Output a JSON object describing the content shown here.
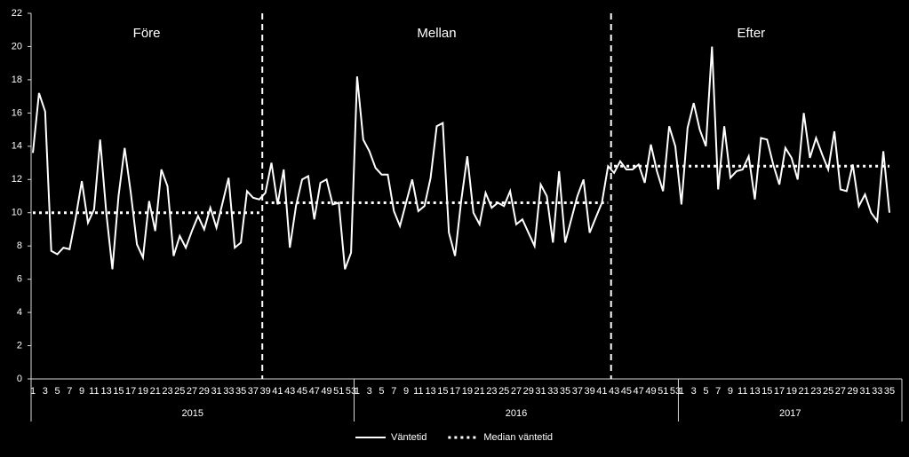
{
  "chart_data": {
    "type": "line",
    "phases": [
      "Före",
      "Mellan",
      "Efter"
    ],
    "categories": [
      "1",
      null,
      "3",
      null,
      "5",
      null,
      "7",
      null,
      "9",
      null,
      "11",
      null,
      "13",
      null,
      "15",
      null,
      "17",
      null,
      "19",
      null,
      "21",
      null,
      "23",
      null,
      "25",
      null,
      "27",
      null,
      "29",
      null,
      "31",
      null,
      "33",
      null,
      "35",
      null,
      "37",
      null,
      "39",
      null,
      "41",
      null,
      "43",
      null,
      "45",
      null,
      "47",
      null,
      "49",
      null,
      "51",
      null,
      "53",
      "1",
      null,
      "3",
      null,
      "5",
      null,
      "7",
      null,
      "9",
      null,
      "11",
      null,
      "13",
      null,
      "15",
      null,
      "17",
      null,
      "19",
      null,
      "21",
      null,
      "23",
      null,
      "25",
      null,
      "27",
      null,
      "29",
      null,
      "31",
      null,
      "33",
      null,
      "35",
      null,
      "37",
      null,
      "39",
      null,
      "41",
      null,
      "43",
      null,
      "45",
      null,
      "47",
      null,
      "49",
      null,
      "51",
      null,
      "53",
      "1",
      null,
      "3",
      null,
      "5",
      null,
      "7",
      null,
      "9",
      null,
      "11",
      null,
      "13",
      null,
      "15",
      null,
      "17",
      null,
      "19",
      null,
      "21",
      null,
      "23",
      null,
      "25",
      null,
      "27",
      null,
      "29",
      null,
      "31",
      null,
      "33",
      null,
      "35"
    ],
    "groups": [
      "2015",
      "2016",
      "2017"
    ],
    "series": [
      {
        "name": "Väntetid",
        "color": "#ffffff",
        "style": "solid",
        "values": [
          13.6,
          17.2,
          16.1,
          7.7,
          7.5,
          7.9,
          7.8,
          9.7,
          11.9,
          9.4,
          10.2,
          14.4,
          10.0,
          6.6,
          11.0,
          13.9,
          11.2,
          8.1,
          7.3,
          10.7,
          8.9,
          12.6,
          11.6,
          7.4,
          8.6,
          7.9,
          8.9,
          9.8,
          9.0,
          10.3,
          9.1,
          10.6,
          12.1,
          7.9,
          8.2,
          11.3,
          10.9,
          10.8,
          11.2,
          13.0,
          10.5,
          12.6,
          7.9,
          10.4,
          12.0,
          12.2,
          9.6,
          11.8,
          12.0,
          10.5,
          10.6,
          6.6,
          7.6,
          18.2,
          14.4,
          13.7,
          12.7,
          12.3,
          12.3,
          10.1,
          9.2,
          10.6,
          12.0,
          10.1,
          10.4,
          12.1,
          15.2,
          15.4,
          8.8,
          7.4,
          10.7,
          13.4,
          10.0,
          9.3,
          11.2,
          10.3,
          10.6,
          10.4,
          11.3,
          9.3,
          9.6,
          8.8,
          8.0,
          11.7,
          11.0,
          8.2,
          12.5,
          8.2,
          9.6,
          11.0,
          12.0,
          8.8,
          9.7,
          10.6,
          12.8,
          12.4,
          13.1,
          12.6,
          12.6,
          12.9,
          11.8,
          14.1,
          12.5,
          11.3,
          15.2,
          14.0,
          10.5,
          15.1,
          16.6,
          15.0,
          14.0,
          20.0,
          11.4,
          15.2,
          12.1,
          12.5,
          12.6,
          13.4,
          10.8,
          14.5,
          14.4,
          12.9,
          11.7,
          13.9,
          13.3,
          12.0,
          16.0,
          13.3,
          14.5,
          13.5,
          12.6,
          14.9,
          11.4,
          11.3,
          12.9,
          10.4,
          11.1,
          10.0,
          9.5,
          13.7,
          10.0
        ]
      },
      {
        "name": "Median väntetid",
        "color": "#ffffff",
        "style": "dotted",
        "values": [
          10,
          10,
          10,
          10,
          10,
          10,
          10,
          10,
          10,
          10,
          10,
          10,
          10,
          10,
          10,
          10,
          10,
          10,
          10,
          10,
          10,
          10,
          10,
          10,
          10,
          10,
          10,
          10,
          10,
          10,
          10,
          10,
          10,
          10,
          10,
          10,
          10,
          10,
          10.6,
          10.6,
          10.6,
          10.6,
          10.6,
          10.6,
          10.6,
          10.6,
          10.6,
          10.6,
          10.6,
          10.6,
          10.6,
          10.6,
          10.6,
          10.6,
          10.6,
          10.6,
          10.6,
          10.6,
          10.6,
          10.6,
          10.6,
          10.6,
          10.6,
          10.6,
          10.6,
          10.6,
          10.6,
          10.6,
          10.6,
          10.6,
          10.6,
          10.6,
          10.6,
          10.6,
          10.6,
          10.6,
          10.6,
          10.6,
          10.6,
          10.6,
          10.6,
          10.6,
          10.6,
          10.6,
          10.6,
          10.6,
          10.6,
          10.6,
          10.6,
          10.6,
          10.6,
          10.6,
          10.6,
          10.6,
          10.6,
          12.8,
          12.8,
          12.8,
          12.8,
          12.8,
          12.8,
          12.8,
          12.8,
          12.8,
          12.8,
          12.8,
          12.8,
          12.8,
          12.8,
          12.8,
          12.8,
          12.8,
          12.8,
          12.8,
          12.8,
          12.8,
          12.8,
          12.8,
          12.8,
          12.8,
          12.8,
          12.8,
          12.8,
          12.8,
          12.8,
          12.8,
          12.8,
          12.8,
          12.8,
          12.8,
          12.8,
          12.8,
          12.8,
          12.8,
          12.8,
          12.8,
          12.8,
          12.8,
          12.8,
          12.8,
          12.8
        ]
      }
    ],
    "ylim": [
      0,
      22
    ],
    "yticks": [
      0,
      2,
      4,
      6,
      8,
      10,
      12,
      14,
      16,
      18,
      20,
      22
    ],
    "grid": false,
    "legend": "bottom"
  }
}
